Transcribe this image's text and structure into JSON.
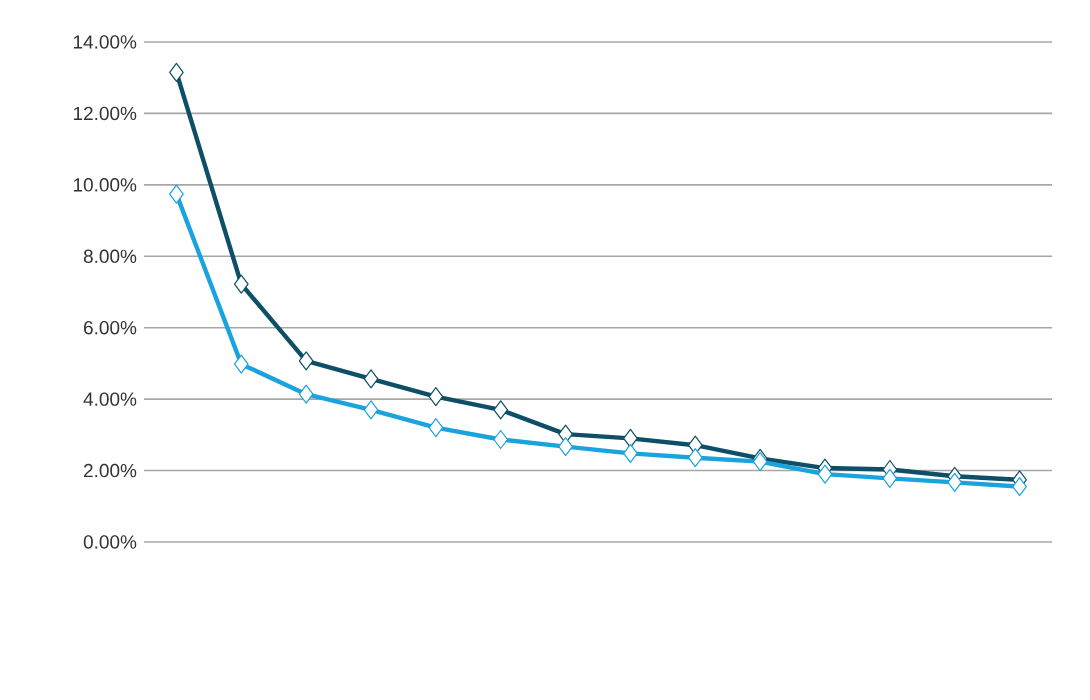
{
  "chart_data": {
    "type": "line",
    "categories": [
      null,
      null,
      null,
      null,
      null,
      null,
      null,
      null,
      null,
      null,
      null,
      null,
      null,
      null
    ],
    "series": [
      {
        "color": "#0d4f66",
        "values": [
          13.15,
          7.22,
          5.07,
          4.57,
          4.07,
          3.7,
          3.02,
          2.9,
          2.71,
          2.34,
          2.07,
          2.03,
          1.84,
          1.74
        ]
      },
      {
        "color": "#1aa3dc",
        "values": [
          9.74,
          4.98,
          4.14,
          3.7,
          3.2,
          2.87,
          2.67,
          2.48,
          2.36,
          2.25,
          1.9,
          1.78,
          1.67,
          1.55
        ]
      }
    ],
    "ylim": [
      0,
      14
    ],
    "yticks": [
      {
        "value": 0,
        "label": "0.00%"
      },
      {
        "value": 2,
        "label": "2.00%"
      },
      {
        "value": 4,
        "label": "4.00%"
      },
      {
        "value": 6,
        "label": "6.00%"
      },
      {
        "value": 8,
        "label": "8.00%"
      },
      {
        "value": 10,
        "label": "10.00%"
      },
      {
        "value": 12,
        "label": "12.00%"
      },
      {
        "value": 14,
        "label": "14.00%"
      }
    ],
    "grid": "y",
    "marker": "diamond",
    "line_style": "solid",
    "tick_labels": "y"
  }
}
